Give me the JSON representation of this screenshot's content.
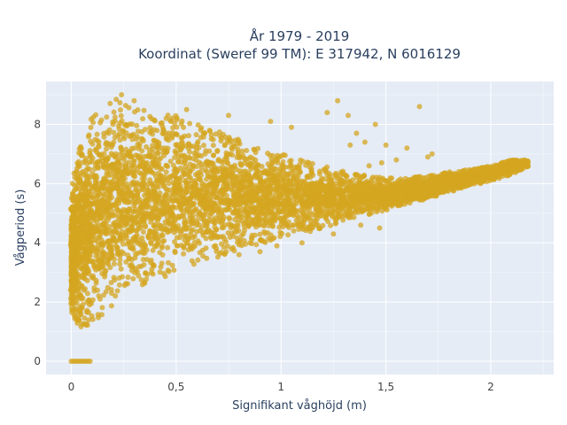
{
  "chart_data": {
    "type": "scatter",
    "title_lines": [
      "År 1979 - 2019",
      "Koordinat (Sweref 99 TM): E 317942, N 6016129"
    ],
    "xlabel": "Signifikant våghöjd (m)",
    "ylabel": "Vågperiod (s)",
    "xlim": [
      -0.12,
      2.3
    ],
    "ylim": [
      -0.45,
      9.45
    ],
    "x_ticks": [
      {
        "value": 0,
        "label": "0"
      },
      {
        "value": 0.5,
        "label": "0,5"
      },
      {
        "value": 1,
        "label": "1"
      },
      {
        "value": 1.5,
        "label": "1,5"
      },
      {
        "value": 2,
        "label": "2"
      }
    ],
    "y_ticks": [
      {
        "value": 0,
        "label": "0"
      },
      {
        "value": 2,
        "label": "2"
      },
      {
        "value": 4,
        "label": "4"
      },
      {
        "value": 6,
        "label": "6"
      },
      {
        "value": 8,
        "label": "8"
      }
    ],
    "grid": true,
    "marker_color": "#d4a520",
    "plot_background": "#e5ecf6",
    "zero_points_x": [
      0.0,
      0.01,
      0.02,
      0.03,
      0.04,
      0.05,
      0.06,
      0.07,
      0.08,
      0.09
    ],
    "envelope": [
      {
        "x": 0.0,
        "ymin": 1.6,
        "ymax": 5.6
      },
      {
        "x": 0.02,
        "ymin": 1.3,
        "ymax": 6.6
      },
      {
        "x": 0.05,
        "ymin": 1.1,
        "ymax": 7.6
      },
      {
        "x": 0.1,
        "ymin": 1.2,
        "ymax": 8.3
      },
      {
        "x": 0.2,
        "ymin": 1.7,
        "ymax": 8.9
      },
      {
        "x": 0.3,
        "ymin": 2.3,
        "ymax": 8.6
      },
      {
        "x": 0.4,
        "ymin": 2.7,
        "ymax": 8.4
      },
      {
        "x": 0.5,
        "ymin": 3.0,
        "ymax": 8.3
      },
      {
        "x": 0.6,
        "ymin": 3.3,
        "ymax": 8.0
      },
      {
        "x": 0.7,
        "ymin": 3.5,
        "ymax": 7.8
      },
      {
        "x": 0.8,
        "ymin": 3.7,
        "ymax": 7.6
      },
      {
        "x": 0.9,
        "ymin": 3.9,
        "ymax": 7.3
      },
      {
        "x": 1.0,
        "ymin": 4.1,
        "ymax": 7.0
      },
      {
        "x": 1.1,
        "ymin": 4.3,
        "ymax": 6.8
      },
      {
        "x": 1.2,
        "ymin": 4.5,
        "ymax": 6.6
      },
      {
        "x": 1.3,
        "ymin": 4.7,
        "ymax": 6.4
      },
      {
        "x": 1.4,
        "ymin": 4.9,
        "ymax": 6.3
      },
      {
        "x": 1.5,
        "ymin": 5.1,
        "ymax": 6.2
      },
      {
        "x": 1.6,
        "ymin": 5.3,
        "ymax": 6.2
      },
      {
        "x": 1.7,
        "ymin": 5.5,
        "ymax": 6.3
      },
      {
        "x": 1.8,
        "ymin": 5.7,
        "ymax": 6.4
      },
      {
        "x": 1.9,
        "ymin": 5.9,
        "ymax": 6.5
      },
      {
        "x": 2.0,
        "ymin": 6.1,
        "ymax": 6.6
      },
      {
        "x": 2.1,
        "ymin": 6.3,
        "ymax": 6.8
      },
      {
        "x": 2.18,
        "ymin": 6.6,
        "ymax": 6.8
      }
    ],
    "outliers": [
      {
        "x": 0.24,
        "y": 9.0
      },
      {
        "x": 0.3,
        "y": 8.8
      },
      {
        "x": 0.55,
        "y": 8.5
      },
      {
        "x": 0.75,
        "y": 8.3
      },
      {
        "x": 0.95,
        "y": 8.1
      },
      {
        "x": 1.05,
        "y": 7.9
      },
      {
        "x": 1.22,
        "y": 8.4
      },
      {
        "x": 1.27,
        "y": 8.8
      },
      {
        "x": 1.32,
        "y": 8.3
      },
      {
        "x": 1.36,
        "y": 7.7
      },
      {
        "x": 1.4,
        "y": 7.4
      },
      {
        "x": 1.45,
        "y": 8.0
      },
      {
        "x": 1.5,
        "y": 7.3
      },
      {
        "x": 1.55,
        "y": 6.8
      },
      {
        "x": 1.6,
        "y": 7.2
      },
      {
        "x": 1.66,
        "y": 8.6
      },
      {
        "x": 1.7,
        "y": 6.9
      },
      {
        "x": 1.72,
        "y": 7.0
      },
      {
        "x": 1.48,
        "y": 6.7
      },
      {
        "x": 1.42,
        "y": 6.6
      },
      {
        "x": 1.33,
        "y": 7.3
      },
      {
        "x": 1.47,
        "y": 4.5
      },
      {
        "x": 1.38,
        "y": 4.6
      },
      {
        "x": 1.25,
        "y": 4.3
      },
      {
        "x": 1.1,
        "y": 4.0
      },
      {
        "x": 0.98,
        "y": 3.9
      },
      {
        "x": 0.9,
        "y": 3.7
      },
      {
        "x": 0.8,
        "y": 3.6
      },
      {
        "x": 1.85,
        "y": 5.9
      },
      {
        "x": 1.95,
        "y": 6.2
      },
      {
        "x": 2.05,
        "y": 6.4
      },
      {
        "x": 2.12,
        "y": 6.6
      },
      {
        "x": 2.16,
        "y": 6.75
      }
    ]
  }
}
